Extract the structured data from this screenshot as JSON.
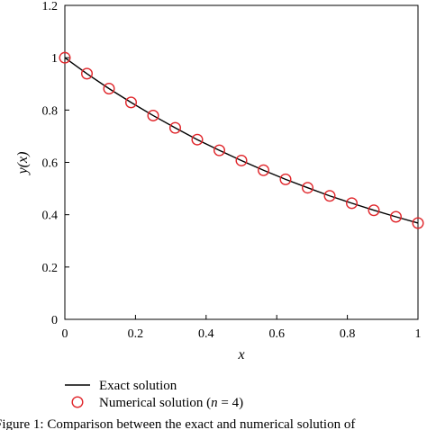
{
  "chart_data": {
    "type": "line",
    "xlabel": "x",
    "ylabel": "y(x)",
    "xlim": [
      0,
      1
    ],
    "ylim": [
      0,
      1.2
    ],
    "x_ticks": [
      "0",
      "0.2",
      "0.4",
      "0.6",
      "0.8",
      "1"
    ],
    "y_ticks": [
      "0",
      "0.2",
      "0.4",
      "0.6",
      "0.8",
      "1",
      "1.2"
    ],
    "grid": false,
    "legend_position": "bottom-left",
    "series": [
      {
        "name": "Exact solution",
        "style": "solid-line",
        "color": "#000000",
        "x": [
          0,
          0.0625,
          0.125,
          0.1875,
          0.25,
          0.3125,
          0.375,
          0.4375,
          0.5,
          0.5625,
          0.625,
          0.6875,
          0.75,
          0.8125,
          0.875,
          0.9375,
          1.0
        ],
        "y": [
          1.0,
          0.939,
          0.882,
          0.829,
          0.779,
          0.732,
          0.687,
          0.646,
          0.607,
          0.57,
          0.535,
          0.503,
          0.472,
          0.444,
          0.417,
          0.392,
          0.368
        ]
      },
      {
        "name": "Numerical solution (n = 4)",
        "name_prefix": "Numerical solution (",
        "name_var": "n",
        "name_suffix": " = 4)",
        "style": "circle-markers",
        "color": "#e0262b",
        "x": [
          0,
          0.0625,
          0.125,
          0.1875,
          0.25,
          0.3125,
          0.375,
          0.4375,
          0.5,
          0.5625,
          0.625,
          0.6875,
          0.75,
          0.8125,
          0.875,
          0.9375,
          1.0
        ],
        "y": [
          1.0,
          0.939,
          0.882,
          0.829,
          0.779,
          0.732,
          0.687,
          0.646,
          0.607,
          0.57,
          0.535,
          0.503,
          0.472,
          0.444,
          0.417,
          0.392,
          0.368
        ]
      }
    ]
  },
  "caption_fragment": "Figure 1: Comparison between the exact and numerical solution of"
}
